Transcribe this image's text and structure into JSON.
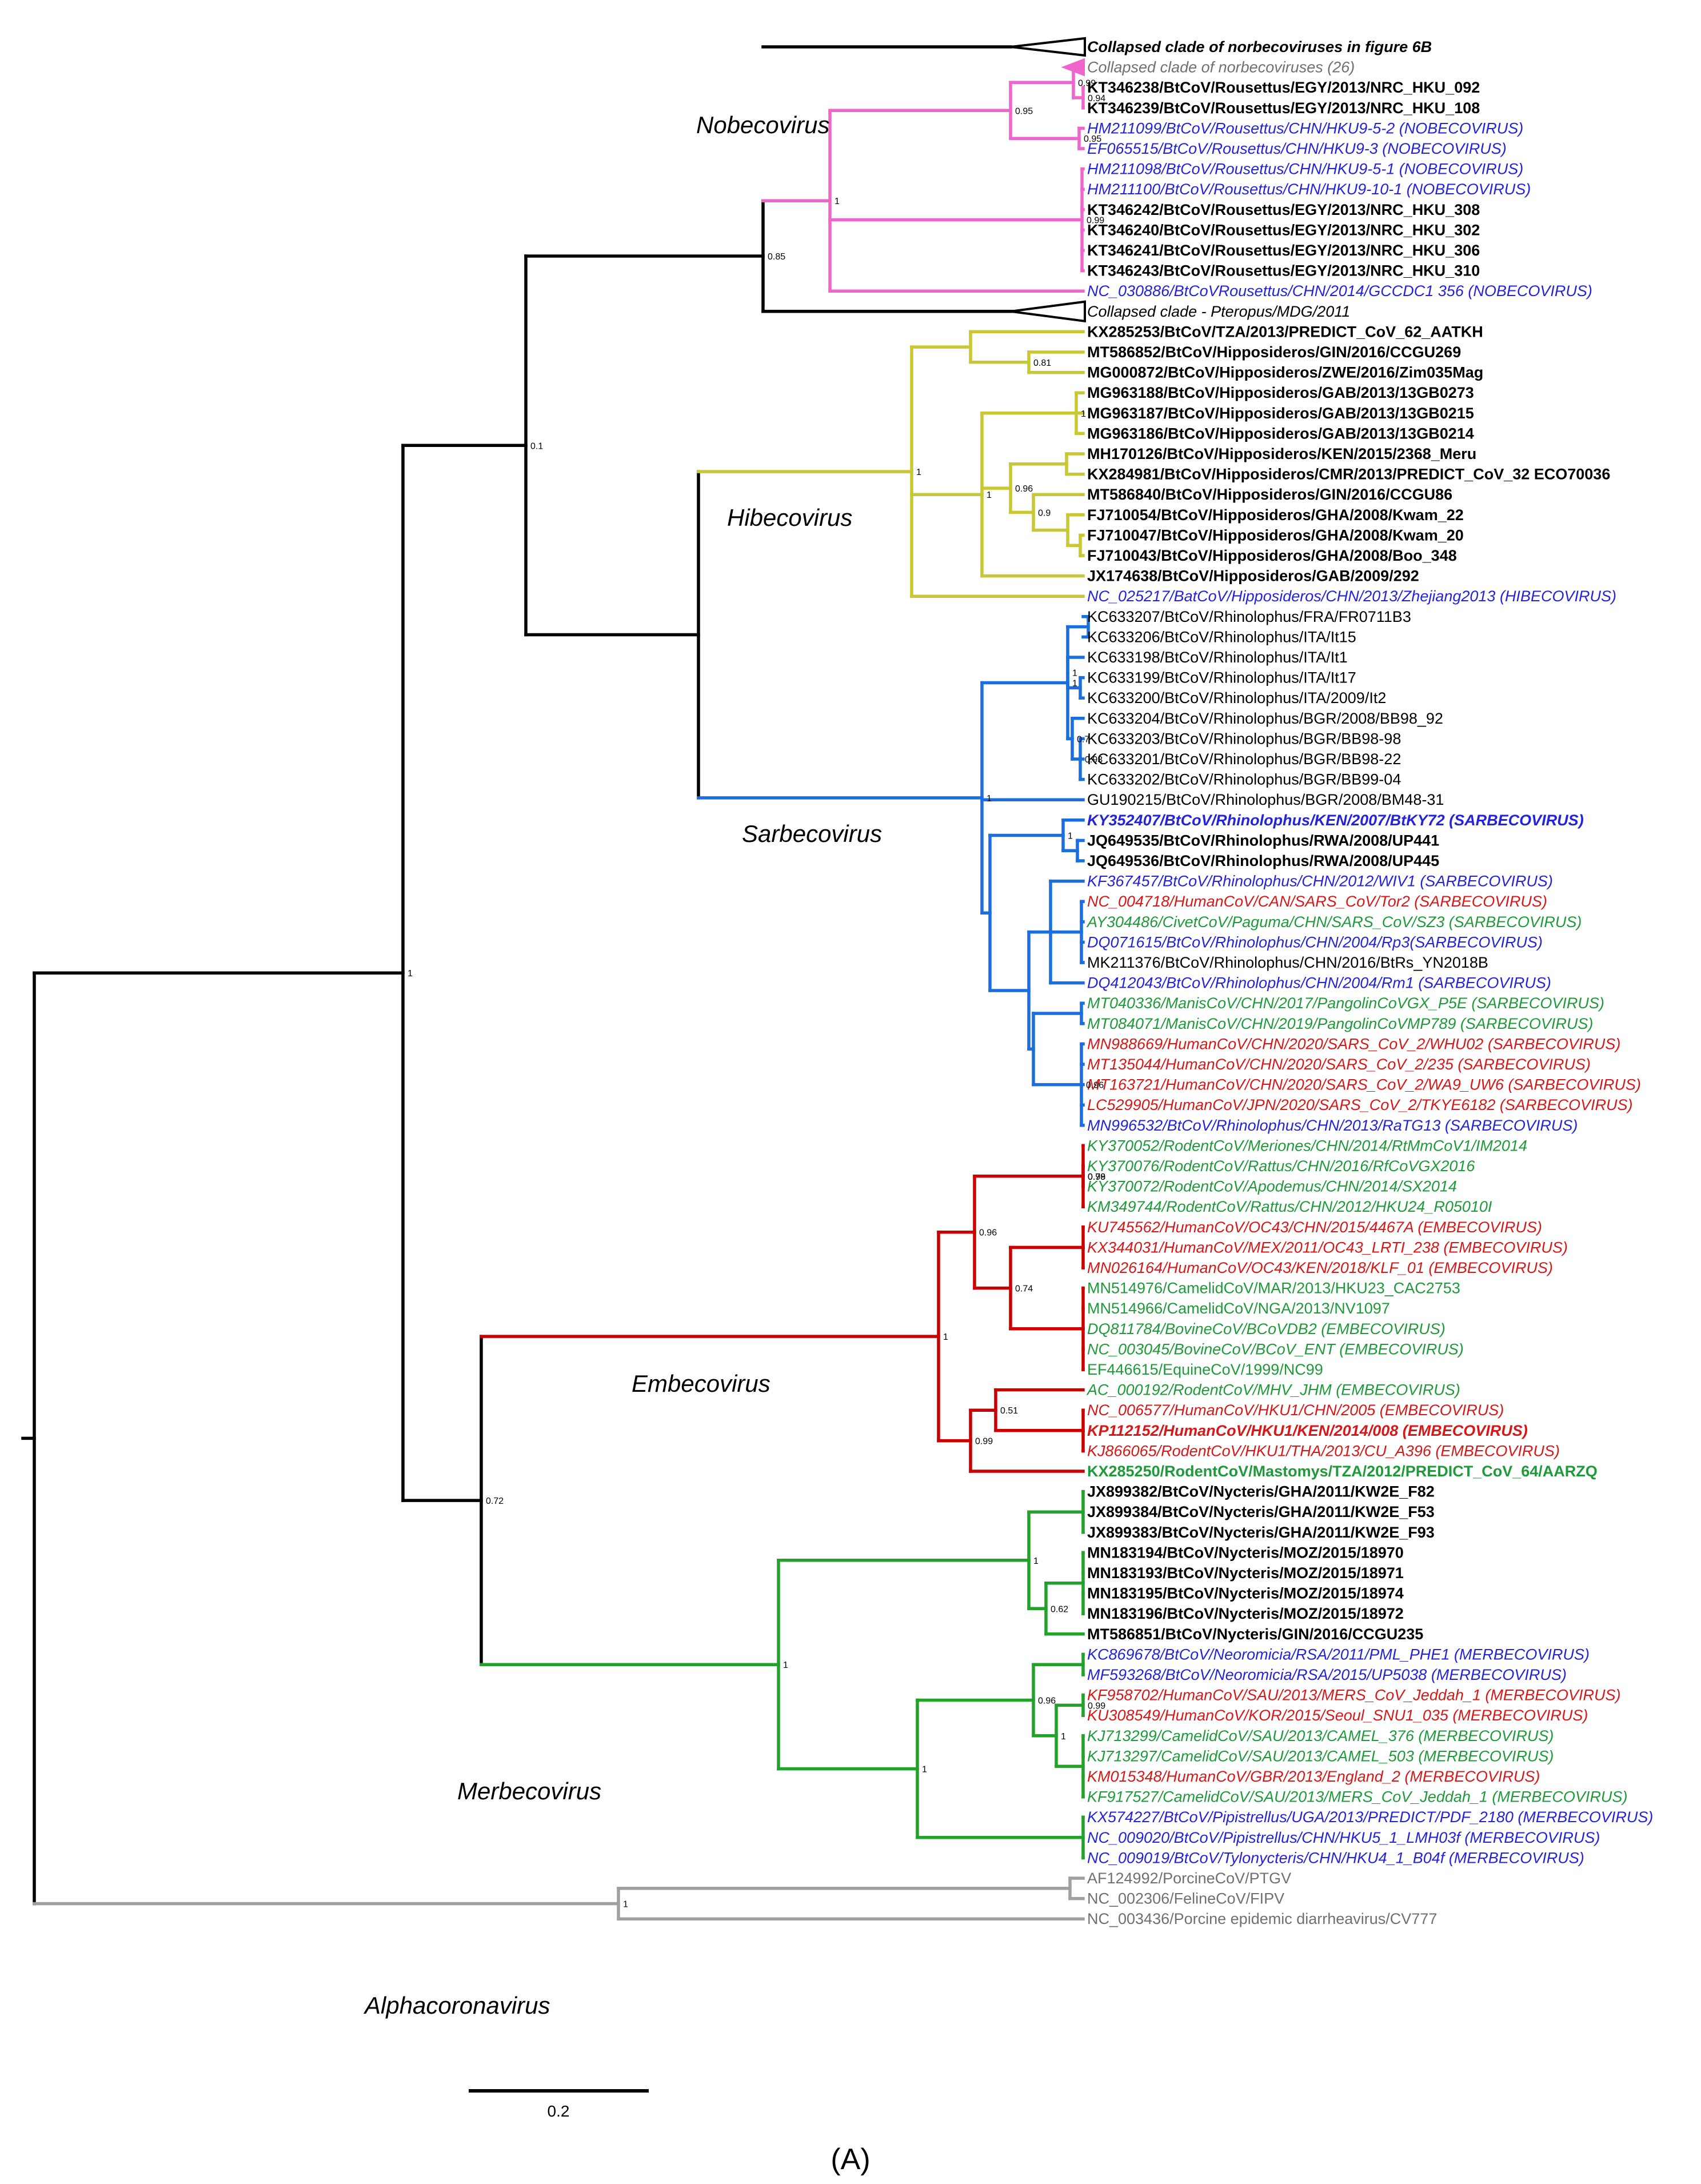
{
  "palette": {
    "black": "#000000",
    "pink": "#ee66cc",
    "yellow": "#c8c832",
    "blue": "#1a6ee0",
    "red": "#cc0000",
    "green": "#22a22a",
    "gray": "#a0a0a0",
    "leafBlue": "#2323dd",
    "leafRed": "#d81818",
    "leafGreen": "#1f9a3a",
    "leafGray": "#707070",
    "leafPink": "#dd44aa"
  },
  "caption": "(A)",
  "scale_bar": {
    "label": "0.2"
  },
  "clades": [
    "Nobecovirus",
    "Hibecovirus",
    "Sarbecovirus",
    "Embecovirus",
    "Merbecovirus",
    "Alphacoronavirus"
  ],
  "leaves": [
    {
      "t": "Collapsed clade of norbecoviruses in figure 6B",
      "c": "k",
      "b": 1,
      "i": 1
    },
    {
      "t": "Collapsed clade of norbecoviruses (26)",
      "c": "g",
      "i": 1
    },
    {
      "t": "KT346238/BtCoV/Rousettus/EGY/2013/NRC_HKU_092",
      "c": "k",
      "b": 1
    },
    {
      "t": "KT346239/BtCoV/Rousettus/EGY/2013/NRC_HKU_108",
      "c": "k",
      "b": 1
    },
    {
      "t": "HM211099/BtCoV/Rousettus/CHN/HKU9-5-2 (NOBECOVIRUS)",
      "c": "b",
      "i": 1
    },
    {
      "t": "EF065515/BtCoV/Rousettus/CHN/HKU9-3 (NOBECOVIRUS)",
      "c": "b",
      "i": 1
    },
    {
      "t": "HM211098/BtCoV/Rousettus/CHN/HKU9-5-1 (NOBECOVIRUS)",
      "c": "b",
      "i": 1
    },
    {
      "t": "HM211100/BtCoV/Rousettus/CHN/HKU9-10-1 (NOBECOVIRUS)",
      "c": "b",
      "i": 1
    },
    {
      "t": "KT346242/BtCoV/Rousettus/EGY/2013/NRC_HKU_308",
      "c": "k",
      "b": 1
    },
    {
      "t": "KT346240/BtCoV/Rousettus/EGY/2013/NRC_HKU_302",
      "c": "k",
      "b": 1
    },
    {
      "t": "KT346241/BtCoV/Rousettus/EGY/2013/NRC_HKU_306",
      "c": "k",
      "b": 1
    },
    {
      "t": "KT346243/BtCoV/Rousettus/EGY/2013/NRC_HKU_310",
      "c": "k",
      "b": 1
    },
    {
      "t": "NC_030886/BtCoVRousettus/CHN/2014/GCCDC1 356 (NOBECOVIRUS)",
      "c": "b",
      "i": 1
    },
    {
      "t": "Collapsed clade - Pteropus/MDG/2011",
      "c": "k",
      "i": 1
    },
    {
      "t": "KX285253/BtCoV/TZA/2013/PREDICT_CoV_62_AATKH",
      "c": "k",
      "b": 1
    },
    {
      "t": "MT586852/BtCoV/Hipposideros/GIN/2016/CCGU269",
      "c": "k",
      "b": 1
    },
    {
      "t": "MG000872/BtCoV/Hipposideros/ZWE/2016/Zim035Mag",
      "c": "k",
      "b": 1
    },
    {
      "t": "MG963188/BtCoV/Hipposideros/GAB/2013/13GB0273",
      "c": "k",
      "b": 1
    },
    {
      "t": "MG963187/BtCoV/Hipposideros/GAB/2013/13GB0215",
      "c": "k",
      "b": 1
    },
    {
      "t": "MG963186/BtCoV/Hipposideros/GAB/2013/13GB0214",
      "c": "k",
      "b": 1
    },
    {
      "t": "MH170126/BtCoV/Hipposideros/KEN/2015/2368_Meru",
      "c": "k",
      "b": 1
    },
    {
      "t": "KX284981/BtCoV/Hipposideros/CMR/2013/PREDICT_CoV_32 ECO70036",
      "c": "k",
      "b": 1
    },
    {
      "t": "MT586840/BtCoV/Hipposideros/GIN/2016/CCGU86",
      "c": "k",
      "b": 1
    },
    {
      "t": "FJ710054/BtCoV/Hipposideros/GHA/2008/Kwam_22",
      "c": "k",
      "b": 1
    },
    {
      "t": "FJ710047/BtCoV/Hipposideros/GHA/2008/Kwam_20",
      "c": "k",
      "b": 1
    },
    {
      "t": "FJ710043/BtCoV/Hipposideros/GHA/2008/Boo_348",
      "c": "k",
      "b": 1
    },
    {
      "t": "JX174638/BtCoV/Hipposideros/GAB/2009/292",
      "c": "k",
      "b": 1
    },
    {
      "t": "NC_025217/BatCoV/Hipposideros/CHN/2013/Zhejiang2013 (HIBECOVIRUS)",
      "c": "b",
      "i": 1
    },
    {
      "t": "KC633207/BtCoV/Rhinolophus/FRA/FR0711B3",
      "c": "k"
    },
    {
      "t": "KC633206/BtCoV/Rhinolophus/ITA/It15",
      "c": "k"
    },
    {
      "t": "KC633198/BtCoV/Rhinolophus/ITA/It1",
      "c": "k"
    },
    {
      "t": "KC633199/BtCoV/Rhinolophus/ITA/It17",
      "c": "k"
    },
    {
      "t": "KC633200/BtCoV/Rhinolophus/ITA/2009/It2",
      "c": "k"
    },
    {
      "t": "KC633204/BtCoV/Rhinolophus/BGR/2008/BB98_92",
      "c": "k"
    },
    {
      "t": "KC633203/BtCoV/Rhinolophus/BGR/BB98-98",
      "c": "k"
    },
    {
      "t": "KC633201/BtCoV/Rhinolophus/BGR/BB98-22",
      "c": "k"
    },
    {
      "t": "KC633202/BtCoV/Rhinolophus/BGR/BB99-04",
      "c": "k"
    },
    {
      "t": "GU190215/BtCoV/Rhinolophus/BGR/2008/BM48-31",
      "c": "k"
    },
    {
      "t": "KY352407/BtCoV/Rhinolophus/KEN/2007/BtKY72 (SARBECOVIRUS)",
      "c": "b",
      "b": 1,
      "i": 1
    },
    {
      "t": "JQ649535/BtCoV/Rhinolophus/RWA/2008/UP441",
      "c": "k",
      "b": 1
    },
    {
      "t": "JQ649536/BtCoV/Rhinolophus/RWA/2008/UP445",
      "c": "k",
      "b": 1
    },
    {
      "t": "KF367457/BtCoV/Rhinolophus/CHN/2012/WIV1 (SARBECOVIRUS)",
      "c": "b",
      "i": 1
    },
    {
      "t": "NC_004718/HumanCoV/CAN/SARS_CoV/Tor2 (SARBECOVIRUS)",
      "c": "r",
      "i": 1
    },
    {
      "t": "AY304486/CivetCoV/Paguma/CHN/SARS_CoV/SZ3 (SARBECOVIRUS)",
      "c": "gr",
      "i": 1
    },
    {
      "t": "DQ071615/BtCoV/Rhinolophus/CHN/2004/Rp3(SARBECOVIRUS)",
      "c": "b",
      "i": 1
    },
    {
      "t": "MK211376/BtCoV/Rhinolophus/CHN/2016/BtRs_YN2018B",
      "c": "k"
    },
    {
      "t": "DQ412043/BtCoV/Rhinolophus/CHN/2004/Rm1 (SARBECOVIRUS)",
      "c": "b",
      "i": 1
    },
    {
      "t": "MT040336/ManisCoV/CHN/2017/PangolinCoVGX_P5E (SARBECOVIRUS)",
      "c": "gr",
      "i": 1
    },
    {
      "t": "MT084071/ManisCoV/CHN/2019/PangolinCoVMP789 (SARBECOVIRUS)",
      "c": "gr",
      "i": 1
    },
    {
      "t": "MN988669/HumanCoV/CHN/2020/SARS_CoV_2/WHU02 (SARBECOVIRUS)",
      "c": "r",
      "i": 1
    },
    {
      "t": "MT135044/HumanCoV/CHN/2020/SARS_CoV_2/235 (SARBECOVIRUS)",
      "c": "r",
      "i": 1
    },
    {
      "t": "MT163721/HumanCoV/CHN/2020/SARS_CoV_2/WA9_UW6 (SARBECOVIRUS)",
      "c": "r",
      "i": 1
    },
    {
      "t": "LC529905/HumanCoV/JPN/2020/SARS_CoV_2/TKYE6182 (SARBECOVIRUS)",
      "c": "r",
      "i": 1
    },
    {
      "t": "MN996532/BtCoV/Rhinolophus/CHN/2013/RaTG13 (SARBECOVIRUS)",
      "c": "b",
      "i": 1
    },
    {
      "t": "KY370052/RodentCoV/Meriones/CHN/2014/RtMmCoV1/IM2014",
      "c": "gr",
      "i": 1
    },
    {
      "t": "KY370076/RodentCoV/Rattus/CHN/2016/RfCoVGX2016",
      "c": "gr",
      "i": 1
    },
    {
      "t": "KY370072/RodentCoV/Apodemus/CHN/2014/SX2014",
      "c": "gr",
      "i": 1
    },
    {
      "t": "KM349744/RodentCoV/Rattus/CHN/2012/HKU24_R05010I",
      "c": "gr",
      "i": 1
    },
    {
      "t": "KU745562/HumanCoV/OC43/CHN/2015/4467A (EMBECOVIRUS)",
      "c": "r",
      "i": 1
    },
    {
      "t": "KX344031/HumanCoV/MEX/2011/OC43_LRTI_238 (EMBECOVIRUS)",
      "c": "r",
      "i": 1
    },
    {
      "t": "MN026164/HumanCoV/OC43/KEN/2018/KLF_01 (EMBECOVIRUS)",
      "c": "r",
      "i": 1
    },
    {
      "t": "MN514976/CamelidCoV/MAR/2013/HKU23_CAC2753",
      "c": "gr"
    },
    {
      "t": "MN514966/CamelidCoV/NGA/2013/NV1097",
      "c": "gr"
    },
    {
      "t": "DQ811784/BovineCoV/BCoVDB2 (EMBECOVIRUS)",
      "c": "gr",
      "i": 1
    },
    {
      "t": "NC_003045/BovineCoV/BCoV_ENT (EMBECOVIRUS)",
      "c": "gr",
      "i": 1
    },
    {
      "t": "EF446615/EquineCoV/1999/NC99",
      "c": "gr"
    },
    {
      "t": "AC_000192/RodentCoV/MHV_JHM (EMBECOVIRUS)",
      "c": "gr",
      "i": 1
    },
    {
      "t": "NC_006577/HumanCoV/HKU1/CHN/2005 (EMBECOVIRUS)",
      "c": "r",
      "i": 1
    },
    {
      "t": "KP112152/HumanCoV/HKU1/KEN/2014/008 (EMBECOVIRUS)",
      "c": "r",
      "b": 1,
      "i": 1
    },
    {
      "t": "KJ866065/RodentCoV/HKU1/THA/2013/CU_A396 (EMBECOVIRUS)",
      "c": "r",
      "i": 1
    },
    {
      "t": "KX285250/RodentCoV/Mastomys/TZA/2012/PREDICT_CoV_64/AARZQ",
      "c": "gr",
      "b": 1
    },
    {
      "t": "JX899382/BtCoV/Nycteris/GHA/2011/KW2E_F82",
      "c": "k",
      "b": 1
    },
    {
      "t": "JX899384/BtCoV/Nycteris/GHA/2011/KW2E_F53",
      "c": "k",
      "b": 1
    },
    {
      "t": "JX899383/BtCoV/Nycteris/GHA/2011/KW2E_F93",
      "c": "k",
      "b": 1
    },
    {
      "t": "MN183194/BtCoV/Nycteris/MOZ/2015/18970",
      "c": "k",
      "b": 1
    },
    {
      "t": "MN183193/BtCoV/Nycteris/MOZ/2015/18971",
      "c": "k",
      "b": 1
    },
    {
      "t": "MN183195/BtCoV/Nycteris/MOZ/2015/18974",
      "c": "k",
      "b": 1
    },
    {
      "t": "MN183196/BtCoV/Nycteris/MOZ/2015/18972",
      "c": "k",
      "b": 1
    },
    {
      "t": "MT586851/BtCoV/Nycteris/GIN/2016/CCGU235",
      "c": "k",
      "b": 1
    },
    {
      "t": "KC869678/BtCoV/Neoromicia/RSA/2011/PML_PHE1 (MERBECOVIRUS)",
      "c": "b",
      "i": 1
    },
    {
      "t": "MF593268/BtCoV/Neoromicia/RSA/2015/UP5038 (MERBECOVIRUS)",
      "c": "b",
      "i": 1
    },
    {
      "t": "KF958702/HumanCoV/SAU/2013/MERS_CoV_Jeddah_1 (MERBECOVIRUS)",
      "c": "r",
      "i": 1
    },
    {
      "t": "KU308549/HumanCoV/KOR/2015/Seoul_SNU1_035 (MERBECOVIRUS)",
      "c": "r",
      "i": 1
    },
    {
      "t": "KJ713299/CamelidCoV/SAU/2013/CAMEL_376 (MERBECOVIRUS)",
      "c": "gr",
      "i": 1
    },
    {
      "t": "KJ713297/CamelidCoV/SAU/2013/CAMEL_503 (MERBECOVIRUS)",
      "c": "gr",
      "i": 1
    },
    {
      "t": "KM015348/HumanCoV/GBR/2013/England_2 (MERBECOVIRUS)",
      "c": "r",
      "i": 1
    },
    {
      "t": "KF917527/CamelidCoV/SAU/2013/MERS_CoV_Jeddah_1 (MERBECOVIRUS)",
      "c": "gr",
      "i": 1
    },
    {
      "t": "KX574227/BtCoV/Pipistrellus/UGA/2013/PREDICT/PDF_2180 (MERBECOVIRUS)",
      "c": "b",
      "i": 1
    },
    {
      "t": "NC_009020/BtCoV/Pipistrellus/CHN/HKU5_1_LMH03f (MERBECOVIRUS)",
      "c": "b",
      "i": 1
    },
    {
      "t": "NC_009019/BtCoV/Tylonycteris/CHN/HKU4_1_B04f (MERBECOVIRUS)",
      "c": "b",
      "i": 1
    },
    {
      "t": "AF124992/PorcineCoV/PTGV",
      "c": "g"
    },
    {
      "t": "NC_002306/FelineCoV/FIPV",
      "c": "g"
    },
    {
      "t": "NC_003436/Porcine epidemic diarrheavirus/CV777",
      "c": "g"
    }
  ],
  "node_labels": [
    "0.99",
    "0.94",
    "0.95",
    "0.95",
    "1",
    "0.99",
    "0.85",
    "0.1",
    "0.81",
    "1",
    "1",
    "1",
    "0.96",
    "0.9",
    "1",
    "1",
    "1",
    "1",
    "0.7",
    "0.93",
    "1",
    "0.72",
    "1",
    "1",
    "0.96",
    "0.99",
    "0.96",
    "0.74",
    "0.78",
    "1",
    "0.51",
    "0.99",
    "1",
    "1",
    "0.62",
    "1",
    "0.99",
    "1",
    "0.96",
    "1",
    "1"
  ]
}
